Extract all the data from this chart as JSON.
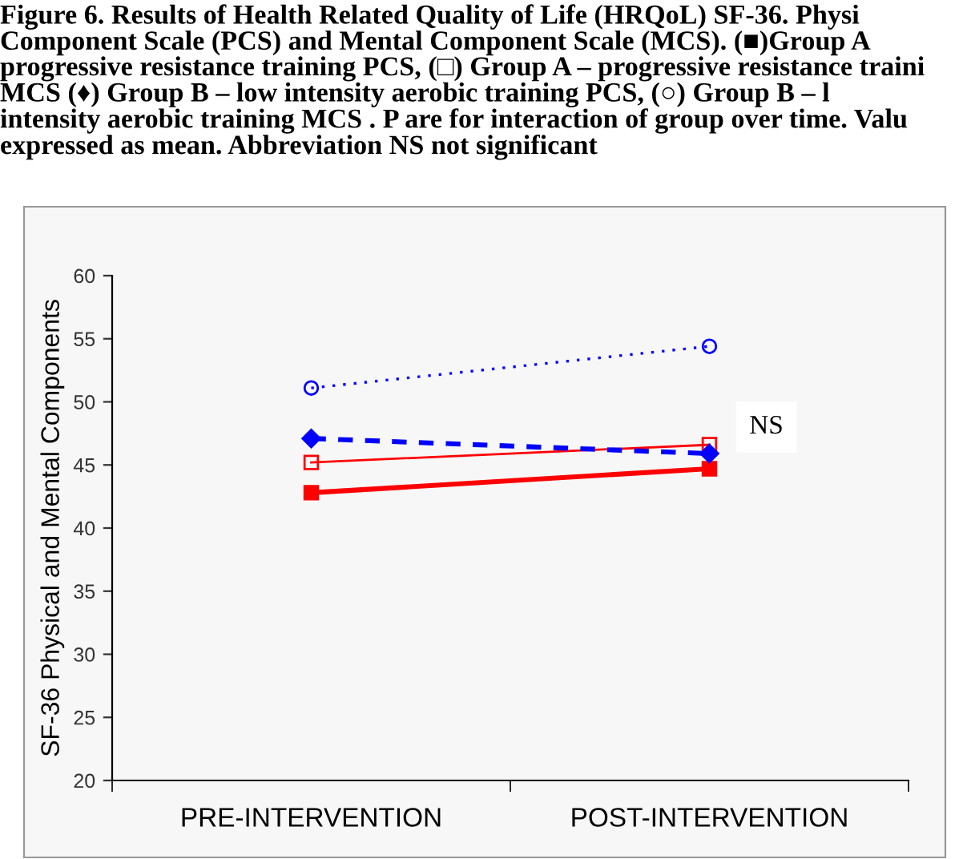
{
  "chart_data": {
    "type": "line",
    "title": "Figure 6. Results of Health Related Quality of Life (HRQoL) SF-36. Physi\nComponent Scale (PCS) and Mental Component Scale (MCS). (■)Group A\nprogressive resistance training PCS, (□) Group A – progressive resistance traini\nMCS (♦) Group B – low intensity aerobic training PCS, (○) Group B – l\nintensity aerobic training MCS . P are for interaction of group over time. Valu\nexpressed as mean. Abbreviation NS not significant",
    "ylabel": "SF-36 Physical and Mental Components",
    "categories": [
      "PRE-INTERVENTION",
      "POST-INTERVENTION"
    ],
    "series": [
      {
        "color": "#ff0000",
        "values": [
          42.8,
          44.7
        ],
        "marker": "square",
        "line_style": "solid"
      },
      {
        "color": "#ff0000",
        "values": [
          45.2,
          46.6
        ],
        "marker": "square",
        "line_style": "solid"
      },
      {
        "color": "#0000ff",
        "values": [
          47.1,
          45.9
        ],
        "marker": "diamond",
        "line_style": "dashed"
      },
      {
        "color": "#0000ff",
        "values": [
          51.1,
          54.4
        ],
        "marker": "circle",
        "line_style": "dotted"
      }
    ],
    "ylim": [
      20,
      60
    ],
    "yticks": [
      20,
      25,
      30,
      35,
      40,
      45,
      50,
      55,
      60
    ],
    "grid": false,
    "annotations": [
      "NS"
    ]
  }
}
